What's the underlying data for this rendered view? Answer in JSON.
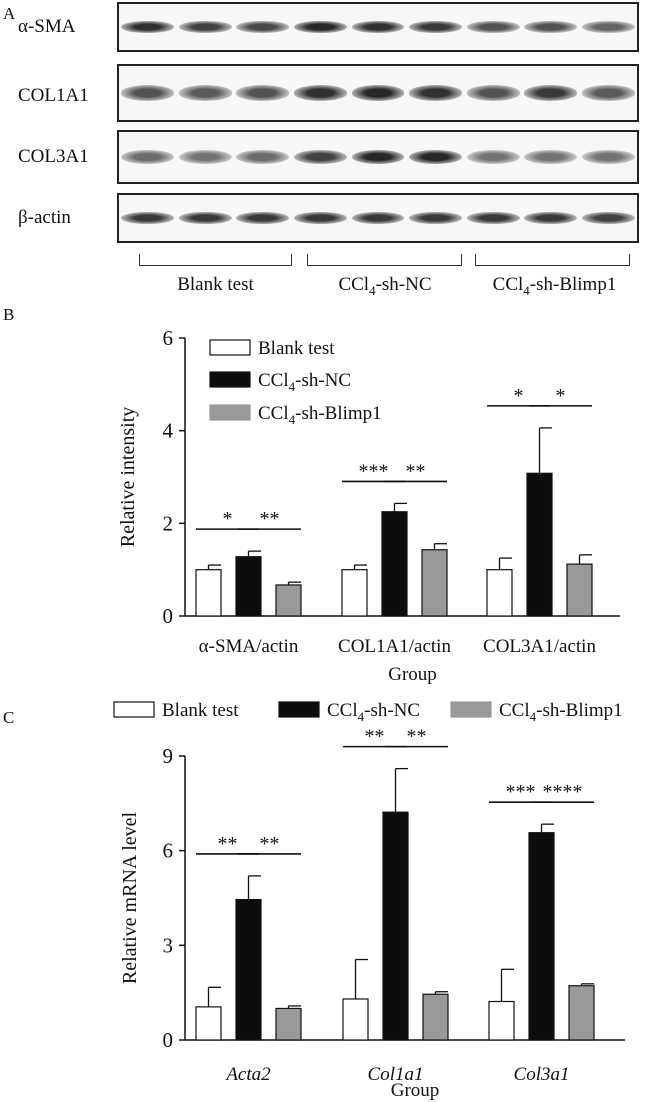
{
  "panel_letters": {
    "a": "A",
    "b": "B",
    "c": "C"
  },
  "blot": {
    "rows": [
      {
        "label": "α-SMA",
        "intensities": [
          0.95,
          0.85,
          0.8,
          1.0,
          0.95,
          0.9,
          0.75,
          0.75,
          0.65
        ]
      },
      {
        "label": "COL1A1",
        "intensities": [
          0.75,
          0.7,
          0.75,
          0.95,
          1.0,
          0.95,
          0.75,
          0.9,
          0.7
        ]
      },
      {
        "label": "COL3A1",
        "intensities": [
          0.6,
          0.55,
          0.6,
          0.85,
          1.0,
          1.0,
          0.55,
          0.55,
          0.55
        ]
      },
      {
        "label": "β-actin",
        "intensities": [
          0.9,
          0.9,
          0.9,
          0.9,
          0.9,
          0.9,
          0.9,
          0.9,
          0.85
        ]
      }
    ],
    "groups": [
      "Blank test",
      "CCl4-sh-NC",
      "CCl4-sh-Blimp1"
    ]
  },
  "chart_data": [
    {
      "type": "bar",
      "panel": "B",
      "ylabel": "Relative intensity",
      "xlabel": "Group",
      "ylim": [
        0,
        6
      ],
      "yticks": [
        "0",
        "2",
        "4",
        "6"
      ],
      "categories": [
        "α-SMA/actin",
        "COL1A1/actin",
        "COL3A1/actin"
      ],
      "legend_position": "top-left",
      "series": [
        {
          "name": "Blank test",
          "values": [
            1.0,
            1.0,
            1.0
          ],
          "errors": [
            0.1,
            0.1,
            0.25
          ]
        },
        {
          "name": "CCl4-sh-NC",
          "values": [
            1.28,
            2.25,
            3.08
          ],
          "errors": [
            0.12,
            0.18,
            0.98
          ]
        },
        {
          "name": "CCl4-sh-Blimp1",
          "values": [
            0.67,
            1.43,
            1.12
          ],
          "errors": [
            0.06,
            0.13,
            0.2
          ]
        }
      ],
      "significance": [
        [
          "*",
          "**"
        ],
        [
          "***",
          "**"
        ],
        [
          "*",
          "*"
        ]
      ]
    },
    {
      "type": "bar",
      "panel": "C",
      "ylabel": "Relative mRNA level",
      "xlabel": "Group",
      "ylim": [
        0,
        9
      ],
      "yticks": [
        "0",
        "3",
        "6",
        "9"
      ],
      "categories": [
        "Acta2",
        "Col1a1",
        "Col3a1"
      ],
      "legend_position": "top",
      "series": [
        {
          "name": "Blank test",
          "values": [
            1.05,
            1.3,
            1.22
          ],
          "errors": [
            0.62,
            1.25,
            1.02
          ]
        },
        {
          "name": "CCl4-sh-NC",
          "values": [
            4.45,
            7.22,
            6.57
          ],
          "errors": [
            0.75,
            1.38,
            0.27
          ]
        },
        {
          "name": "CCl4-sh-Blimp1",
          "values": [
            1.0,
            1.45,
            1.72
          ],
          "errors": [
            0.08,
            0.08,
            0.06
          ]
        }
      ],
      "significance": [
        [
          "**",
          "**"
        ],
        [
          "**",
          "**"
        ],
        [
          "***",
          "****"
        ]
      ]
    }
  ],
  "colors": {
    "blank": "#ffffff",
    "nc": "#0d0d0d",
    "blimp": "#999999",
    "axis": "#111111"
  }
}
